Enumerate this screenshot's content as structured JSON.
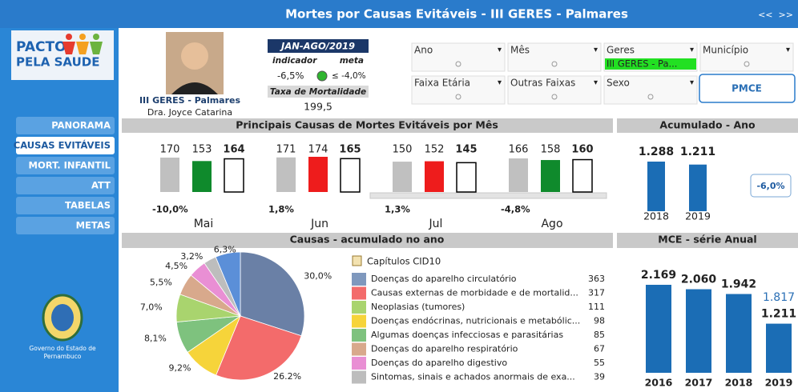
{
  "header": {
    "title": "Mortes por Causas Evitáveis - III GERES - Palmares",
    "nav": "<<  >>"
  },
  "logo": {
    "line1": "PACTO",
    "line2": "PELA SAUDE"
  },
  "menu": {
    "items": [
      "PANORAMA",
      "CAUSAS EVITÁVEIS",
      "MORT. INFANTIL",
      "ATT",
      "TABELAS",
      "METAS"
    ],
    "active": 1
  },
  "government": {
    "line1": "Governo do Estado de",
    "line2": "Pernambuco"
  },
  "profile": {
    "region": "III GERES - Palmares",
    "name": "Dra. Joyce Catarina"
  },
  "kpi": {
    "period": "JAN-AGO/2019",
    "indicator_label": "indicador",
    "meta_label": "meta",
    "indicator": "-6,5%",
    "meta": "≤ -4,0%",
    "rate_label": "Taxa de Mortalidade",
    "rate": "199,5"
  },
  "filters": {
    "items": [
      {
        "label": "Ano"
      },
      {
        "label": "Mês"
      },
      {
        "label": "Geres",
        "value": "III GERES - Pa..."
      },
      {
        "label": "Município"
      },
      {
        "label": "Faixa Etária"
      },
      {
        "label": "Outras Faixas"
      },
      {
        "label": "Sexo"
      }
    ],
    "button": "PMCE"
  },
  "monthly": {
    "title": "Principais Causas de Mortes Evitáveis por Mês",
    "months": [
      {
        "name": "Mai",
        "values": [
          170,
          153,
          164
        ],
        "colors": [
          "#c0c0c0",
          "#0f8a2c",
          "#ffffff"
        ],
        "change": "-10,0%"
      },
      {
        "name": "Jun",
        "values": [
          171,
          174,
          165
        ],
        "colors": [
          "#c0c0c0",
          "#ee1c1c",
          "#ffffff"
        ],
        "change": "1,8%"
      },
      {
        "name": "Jul",
        "values": [
          150,
          152,
          145
        ],
        "colors": [
          "#c0c0c0",
          "#ee1c1c",
          "#ffffff"
        ],
        "change": "1,3%"
      },
      {
        "name": "Ago",
        "values": [
          166,
          158,
          160
        ],
        "colors": [
          "#c0c0c0",
          "#0f8a2c",
          "#ffffff"
        ],
        "change": "-4,8%"
      }
    ]
  },
  "accumulated": {
    "title": "Acumulado - Ano",
    "categories": [
      "2018",
      "2019"
    ],
    "values": [
      1288,
      1211
    ],
    "value_labels": [
      "1.288",
      "1.211"
    ],
    "color": "#1b6db5",
    "change": "-6,0%"
  },
  "annual": {
    "title": "MCE - série Anual",
    "categories": [
      "2016",
      "2017",
      "2018",
      "2019"
    ],
    "values": [
      2169,
      2060,
      1942,
      1211
    ],
    "value_labels": [
      "2.169",
      "2.060",
      "1.942",
      "1.211"
    ],
    "color": "#1b6db5",
    "projection": {
      "value": 1817,
      "label": "1.817"
    }
  },
  "causes": {
    "title": "Causas - acumulado no ano",
    "legend_title": "Capítulos CID10",
    "items": [
      {
        "name": "Doenças do aparelho circulatório",
        "value": "363",
        "color": "#7f98bd"
      },
      {
        "name": "Causas externas de morbidade e de mortalid...",
        "value": "317",
        "color": "#f36b6b"
      },
      {
        "name": "Neoplasias (tumores)",
        "value": "111",
        "color": "#a9d46e"
      },
      {
        "name": "Doenças endócrinas, nutricionais e metabólic...",
        "value": "98",
        "color": "#f6d43a"
      },
      {
        "name": "Algumas doenças infecciosas e parasitárias",
        "value": "85",
        "color": "#7ec27e"
      },
      {
        "name": "Doenças do aparelho respiratório",
        "value": "67",
        "color": "#d8a98c"
      },
      {
        "name": "Doenças do aparelho digestivo",
        "value": "55",
        "color": "#e98fd4"
      },
      {
        "name": "Sintomas, sinais e achados anormais de exa...",
        "value": "39",
        "color": "#bdbdbd"
      }
    ],
    "pie": {
      "values": [
        30.0,
        26.2,
        9.2,
        8.1,
        7.0,
        5.5,
        4.5,
        3.2,
        6.3
      ],
      "value_labels": [
        "30,0%",
        "26.2%",
        "9,2%",
        "8,1%",
        "7,0%",
        "5,5%",
        "4,5%",
        "3,2%",
        "6,3%"
      ],
      "colors": [
        "#6a80a6",
        "#f36b6b",
        "#f6d43a",
        "#7ec27e",
        "#a9d46e",
        "#d8a98c",
        "#e98fd4",
        "#bdbdbd",
        "#5b8fd8"
      ]
    }
  }
}
